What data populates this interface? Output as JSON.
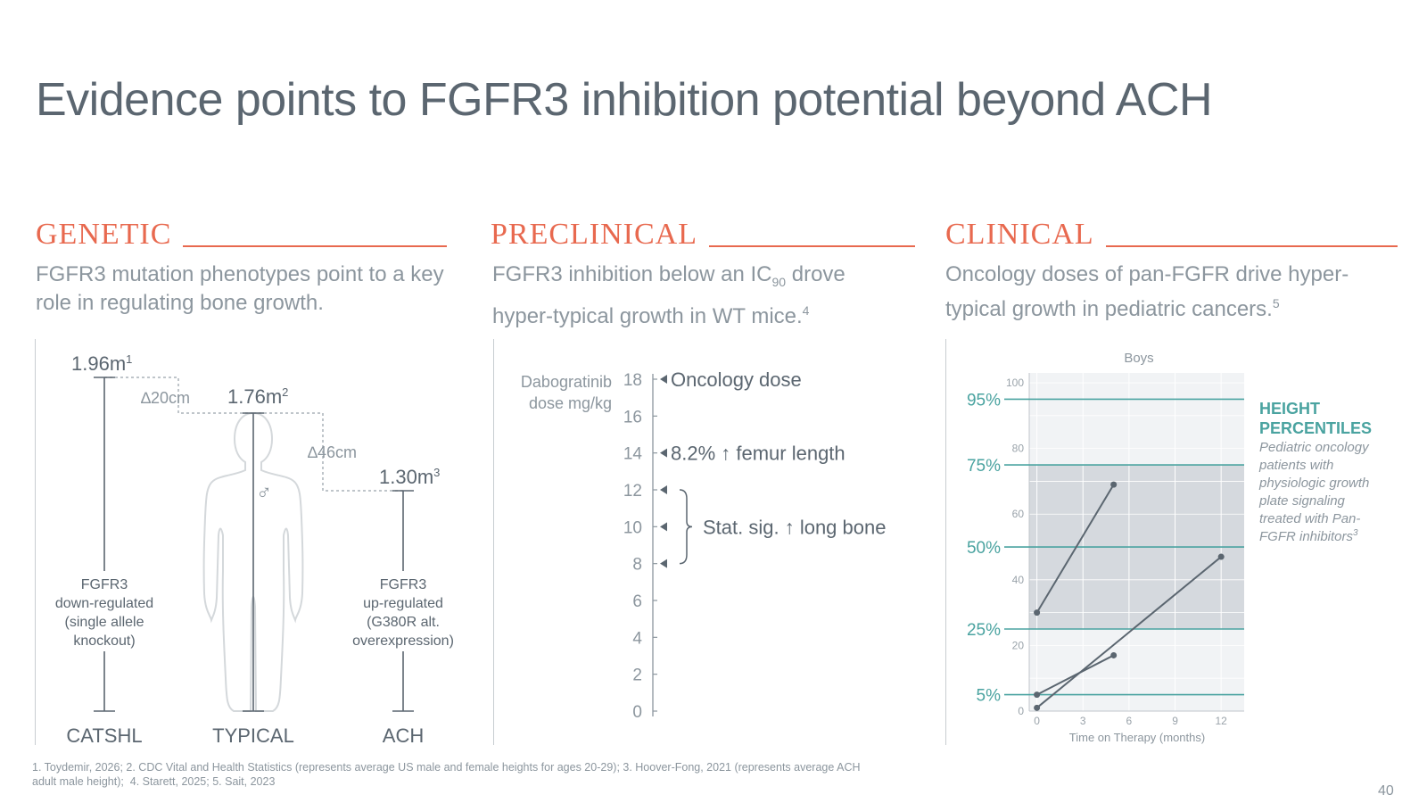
{
  "title": "Evidence points to FGFR3 inhibition potential beyond ACH",
  "page_number": "40",
  "colors": {
    "accent": "#e8694f",
    "teal": "#4aa3a0",
    "text": "#5b6670",
    "muted": "#8c969e"
  },
  "genetic": {
    "heading": "GENETIC",
    "subtitle": "FGFR3 mutation phenotypes point to a key role in regulating bone growth.",
    "catshl": {
      "height": "1.96m",
      "height_sup": "1",
      "label_lines": [
        "FGFR3",
        "down-regulated",
        "(single allele",
        "knockout)"
      ],
      "name": "CATSHL"
    },
    "typical": {
      "height": "1.76m",
      "height_sup": "2",
      "name": "TYPICAL",
      "symbol": "♂"
    },
    "ach": {
      "height": "1.30m",
      "height_sup": "3",
      "label_lines": [
        "FGFR3",
        "up-regulated",
        "(G380R alt.",
        "overexpression)"
      ],
      "name": "ACH"
    },
    "delta_1": "∆20cm",
    "delta_2": "∆46cm"
  },
  "preclinical": {
    "heading": "PRECLINICAL",
    "subtitle_a": "FGFR3 inhibition below an IC",
    "subtitle_sub": "90",
    "subtitle_b": " drove hyper-typical growth in WT mice.",
    "subtitle_sup": "4",
    "axis_label_lines": [
      "Dabogratinib",
      "dose mg/kg"
    ],
    "ticks": [
      "18",
      "16",
      "14",
      "12",
      "10",
      "8",
      "6",
      "4",
      "2",
      "0"
    ],
    "tick_values": [
      18,
      16,
      14,
      12,
      10,
      8,
      6,
      4,
      2,
      0
    ],
    "annotations": [
      {
        "dose": 18,
        "text": "Oncology dose"
      },
      {
        "dose": 14,
        "text": "8.2% ↑ femur length"
      },
      {
        "dose_range": [
          8,
          12
        ],
        "text": "Stat. sig. ↑ long bone"
      }
    ],
    "marker_doses": [
      18,
      14,
      12,
      10,
      8
    ]
  },
  "clinical": {
    "heading": "CLINICAL",
    "subtitle": "Oncology doses of pan-FGFR drive hyper-typical growth in pediatric cancers.",
    "subtitle_sup": "5",
    "legend_title_lines": [
      "HEIGHT",
      "PERCENTILES"
    ],
    "legend_desc_lines": [
      "Pediatric oncology",
      "patients with",
      "physiologic growth",
      "plate signaling",
      "treated with Pan-",
      "FGFR inhibitors"
    ],
    "legend_desc_sup": "3"
  },
  "chart_data": {
    "type": "line",
    "title": "Boys",
    "xlabel": "Time on Therapy (months)",
    "ylabel": "",
    "xlim": [
      -0.5,
      13.5
    ],
    "ylim": [
      0,
      103
    ],
    "x_ticks": [
      0,
      3,
      6,
      9,
      12
    ],
    "y_ticks": [
      0,
      20,
      40,
      60,
      80,
      100
    ],
    "percentile_lines": [
      {
        "label": "95%",
        "value": 95
      },
      {
        "label": "75%",
        "value": 75
      },
      {
        "label": "50%",
        "value": 50
      },
      {
        "label": "25%",
        "value": 25
      },
      {
        "label": "5%",
        "value": 5
      }
    ],
    "shaded_band": [
      25,
      75
    ],
    "series": [
      {
        "values": [
          [
            0,
            30
          ],
          [
            5,
            69
          ]
        ]
      },
      {
        "values": [
          [
            0,
            5
          ],
          [
            5,
            17
          ]
        ]
      },
      {
        "values": [
          [
            0,
            1
          ],
          [
            12,
            47
          ]
        ]
      }
    ]
  }
}
